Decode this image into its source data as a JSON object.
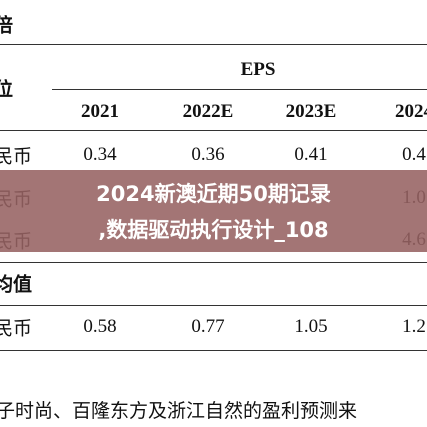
{
  "table": {
    "corner_top": "倍",
    "corner_unit": "位",
    "group_header": "EPS",
    "columns": [
      "2021",
      "2022E",
      "2023E",
      "2024"
    ],
    "rows": [
      {
        "label": "民币",
        "cells": [
          "0.34",
          "0.36",
          "0.41",
          "0.4"
        ]
      },
      {
        "label": "民币",
        "cells": [
          null,
          null,
          null,
          "1.0"
        ]
      },
      {
        "label": "民币",
        "cells": [
          null,
          null,
          null,
          "4.6"
        ]
      },
      {
        "label": "均值",
        "cells": [
          null,
          null,
          null,
          null
        ]
      },
      {
        "label": "民币",
        "cells": [
          "0.58",
          "0.77",
          "1.05",
          "1.2"
        ]
      }
    ]
  },
  "banner": {
    "lines": [
      "2024新澳近期50期记录",
      ",数据驱动执行设计_108"
    ]
  },
  "footer": {
    "text": "子时尚、百隆东方及浙江自然的盈利预测来"
  }
}
